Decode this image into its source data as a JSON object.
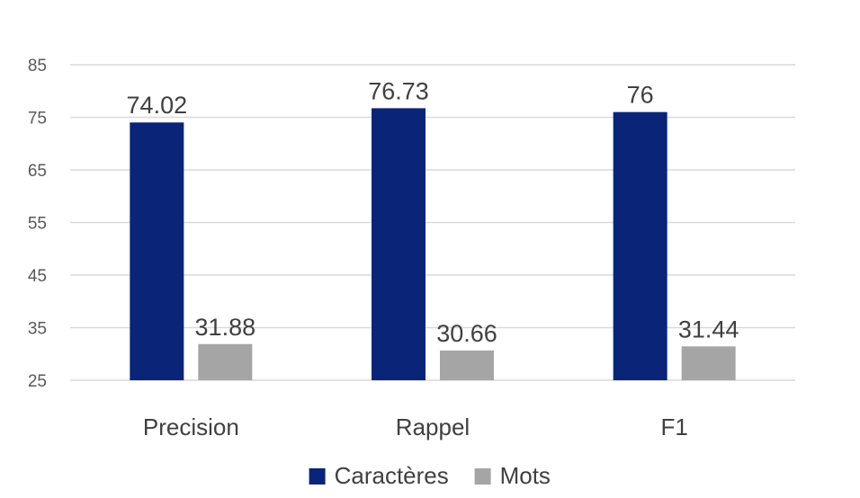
{
  "chart_data": {
    "type": "bar",
    "title": "",
    "xlabel": "",
    "ylabel": "",
    "categories": [
      "Precision",
      "Rappel",
      "F1"
    ],
    "series": [
      {
        "name": "Caractères",
        "color": "#0a2478",
        "values": [
          74.02,
          76.73,
          76
        ],
        "labels": [
          "74.02",
          "76.73",
          "76"
        ]
      },
      {
        "name": "Mots",
        "color": "#a5a5a5",
        "values": [
          31.88,
          30.66,
          31.44
        ],
        "labels": [
          "31.88",
          "30.66",
          "31.44"
        ]
      }
    ],
    "ylim": [
      25,
      85
    ],
    "yticks": [
      25,
      35,
      45,
      55,
      65,
      75,
      85
    ],
    "grid": true,
    "legend_position": "bottom"
  }
}
